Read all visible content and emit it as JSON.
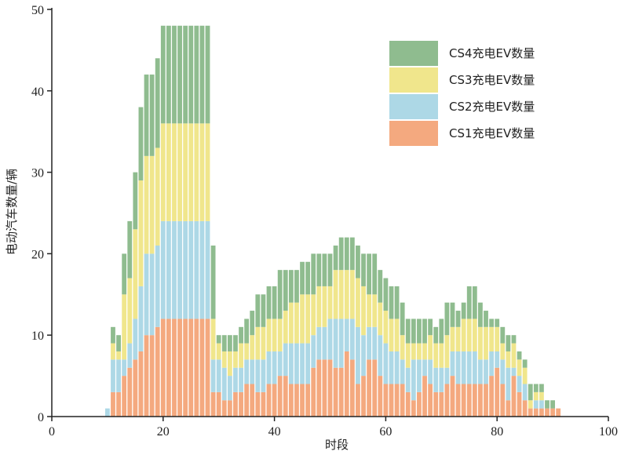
{
  "chart_data": {
    "type": "bar",
    "stacked": true,
    "xlabel": "时段",
    "ylabel": "电动汽车数量/辆",
    "xlim": [
      0,
      100
    ],
    "ylim": [
      0,
      50
    ],
    "xticks": [
      "0",
      "20",
      "40",
      "60",
      "80",
      "100"
    ],
    "yticks": [
      "0",
      "10",
      "20",
      "30",
      "40",
      "50"
    ],
    "grid": false,
    "legend_position": "top-right",
    "x": [
      10,
      11,
      12,
      13,
      14,
      15,
      16,
      17,
      18,
      19,
      20,
      21,
      22,
      23,
      24,
      25,
      26,
      27,
      28,
      29,
      30,
      31,
      32,
      33,
      34,
      35,
      36,
      37,
      38,
      39,
      40,
      41,
      42,
      43,
      44,
      45,
      46,
      47,
      48,
      49,
      50,
      51,
      52,
      53,
      54,
      55,
      56,
      57,
      58,
      59,
      60,
      61,
      62,
      63,
      64,
      65,
      66,
      67,
      68,
      69,
      70,
      71,
      72,
      73,
      74,
      75,
      76,
      77,
      78,
      79,
      80,
      81,
      82,
      83,
      84,
      85,
      86,
      87,
      88,
      89,
      90,
      91
    ],
    "series": [
      {
        "name": "CS1充电EV数量",
        "color": "#f4a97f",
        "values": [
          0,
          3,
          3,
          5,
          6,
          7,
          8,
          10,
          10,
          11,
          12,
          12,
          12,
          12,
          12,
          12,
          12,
          12,
          12,
          3,
          3,
          2,
          2,
          3,
          3,
          4,
          4,
          3,
          3,
          4,
          4,
          5,
          5,
          4,
          4,
          4,
          4,
          6,
          7,
          7,
          7,
          6,
          6,
          8,
          7,
          4,
          5,
          7,
          7,
          5,
          4,
          4,
          4,
          4,
          3,
          2,
          3,
          5,
          4,
          3,
          3,
          4,
          5,
          4,
          4,
          4,
          4,
          4,
          4,
          5,
          6,
          4,
          2,
          5,
          3,
          2,
          1,
          1,
          1,
          1,
          1,
          1
        ]
      },
      {
        "name": "CS2充电EV数量",
        "color": "#add8e6",
        "values": [
          1,
          4,
          4,
          2,
          3,
          5,
          8,
          10,
          10,
          10,
          12,
          12,
          12,
          12,
          12,
          12,
          12,
          12,
          12,
          4,
          4,
          4,
          3,
          3,
          3,
          3,
          3,
          4,
          4,
          4,
          4,
          3,
          4,
          5,
          5,
          5,
          5,
          4,
          4,
          4,
          5,
          6,
          6,
          4,
          5,
          7,
          5,
          4,
          4,
          5,
          5,
          4,
          4,
          3,
          3,
          5,
          4,
          2,
          3,
          3,
          3,
          2,
          3,
          4,
          4,
          4,
          4,
          3,
          3,
          3,
          2,
          3,
          4,
          1,
          2,
          2,
          0,
          1,
          1,
          0,
          0,
          0
        ]
      },
      {
        "name": "CS3充电EV数量",
        "color": "#f0e68c",
        "values": [
          0,
          2,
          1,
          8,
          8,
          11,
          13,
          12,
          12,
          12,
          12,
          12,
          12,
          12,
          12,
          12,
          12,
          12,
          12,
          5,
          2,
          2,
          3,
          2,
          3,
          2,
          3,
          4,
          4,
          4,
          4,
          4,
          4,
          5,
          5,
          6,
          6,
          5,
          5,
          5,
          4,
          6,
          6,
          6,
          6,
          6,
          6,
          4,
          4,
          4,
          4,
          4,
          4,
          3,
          3,
          2,
          2,
          2,
          3,
          3,
          3,
          4,
          3,
          3,
          4,
          4,
          4,
          4,
          4,
          3,
          3,
          2,
          2,
          3,
          2,
          2,
          1,
          1,
          1,
          0,
          0,
          0
        ]
      },
      {
        "name": "CS4充电EV数量",
        "color": "#8fbc8f",
        "values": [
          0,
          2,
          2,
          5,
          7,
          7,
          9,
          10,
          10,
          11,
          12,
          12,
          12,
          12,
          12,
          12,
          12,
          12,
          12,
          9,
          1,
          2,
          2,
          2,
          2,
          3,
          3,
          4,
          4,
          4,
          4,
          6,
          5,
          4,
          4,
          4,
          4,
          5,
          4,
          4,
          4,
          3,
          4,
          4,
          4,
          4,
          4,
          5,
          5,
          4,
          4,
          4,
          4,
          4,
          3,
          3,
          3,
          3,
          2,
          2,
          3,
          4,
          3,
          2,
          2,
          4,
          4,
          3,
          2,
          1,
          1,
          2,
          2,
          1,
          1,
          1,
          2,
          1,
          1,
          1,
          1,
          0
        ]
      }
    ]
  }
}
